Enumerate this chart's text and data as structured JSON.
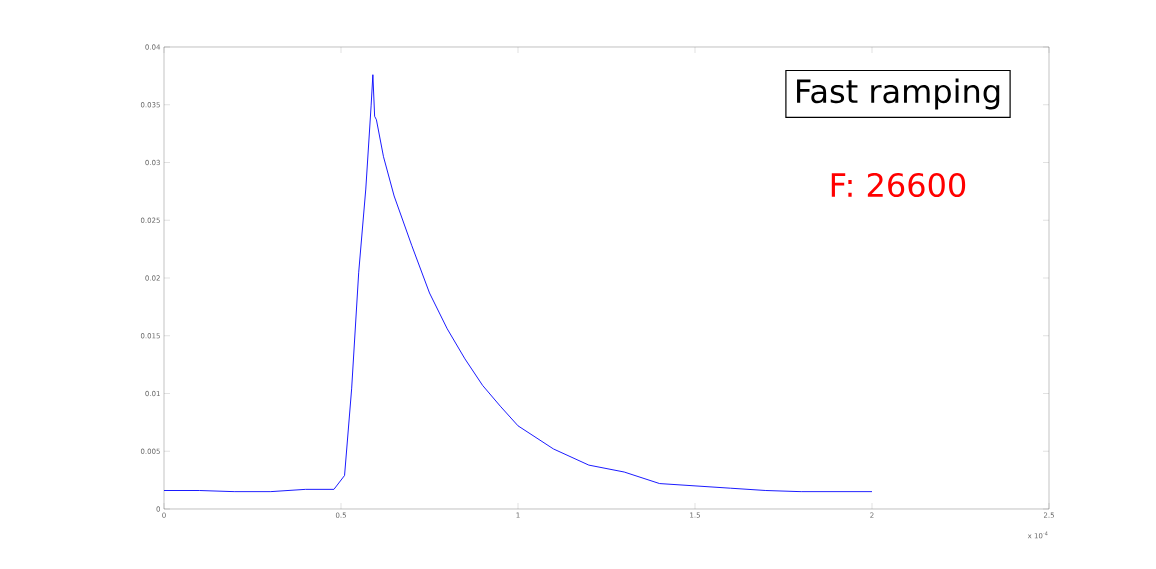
{
  "chart_data": {
    "type": "line",
    "annotations": [
      "Fast ramping",
      "F: 26600",
      "x 10$^{-4}$"
    ],
    "x": [
      0,
      0.1,
      0.2,
      0.3,
      0.4,
      0.48,
      0.51,
      0.53,
      0.55,
      0.57,
      0.585,
      0.59,
      0.595,
      0.6,
      0.62,
      0.65,
      0.7,
      0.75,
      0.8,
      0.85,
      0.9,
      0.95,
      1.0,
      1.1,
      1.2,
      1.3,
      1.4,
      1.5,
      1.6,
      1.7,
      1.8,
      1.9,
      2.0
    ],
    "series": [
      {
        "color": "#0000ff",
        "values": [
          0.0016,
          0.0016,
          0.0015,
          0.0015,
          0.0017,
          0.0017,
          0.0029,
          0.0104,
          0.0205,
          0.0277,
          0.0349,
          0.0376,
          0.034,
          0.0337,
          0.0305,
          0.0271,
          0.0228,
          0.0187,
          0.0156,
          0.013,
          0.0107,
          0.0089,
          0.0072,
          0.0052,
          0.0038,
          0.0032,
          0.0022,
          0.002,
          0.0018,
          0.0016,
          0.0015,
          0.0015,
          0.0015
        ]
      }
    ],
    "xlim": [
      0,
      2.5
    ],
    "ylim": [
      0,
      0.04
    ],
    "xticks": [
      0,
      0.5,
      1,
      1.5,
      2,
      2.5
    ],
    "yticks": [
      0,
      0.005,
      0.01,
      0.015,
      0.02,
      0.025,
      0.03,
      0.035,
      0.04
    ]
  }
}
